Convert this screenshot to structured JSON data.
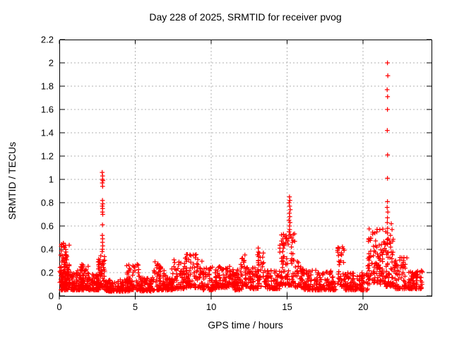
{
  "window": {
    "background": "#ffffff"
  },
  "chart_data": {
    "type": "scatter",
    "title": "Day 228 of 2025, SRMTID for receiver pvog",
    "xlabel": "GPS time / hours",
    "ylabel": "SRMTID / TECUs",
    "series_name": "SRMTID",
    "xlim": [
      0,
      24.5
    ],
    "ylim": [
      0,
      2.2
    ],
    "xticks": [
      0,
      5,
      10,
      15,
      20
    ],
    "yticks": [
      0,
      0.2,
      0.4,
      0.6,
      0.8,
      1,
      1.2,
      1.4,
      1.6,
      1.8,
      2,
      2.2
    ],
    "grid": true,
    "legend": "none",
    "marker_glyph": "+",
    "marker_color": "#ff0000",
    "grid_color": "#b0b0b0",
    "axis_color": "#000000",
    "outlier_points": [
      [
        2.82,
        1.06
      ],
      [
        2.85,
        1.03
      ],
      [
        2.84,
        1.0
      ],
      [
        2.87,
        0.99
      ],
      [
        2.83,
        0.97
      ],
      [
        2.85,
        0.94
      ],
      [
        2.84,
        0.82
      ],
      [
        2.86,
        0.79
      ],
      [
        2.83,
        0.77
      ],
      [
        2.85,
        0.75
      ],
      [
        2.84,
        0.72
      ],
      [
        2.86,
        0.7
      ],
      [
        2.84,
        0.61
      ],
      [
        2.83,
        0.52
      ],
      [
        2.85,
        0.49
      ],
      [
        2.84,
        0.46
      ],
      [
        2.86,
        0.43
      ],
      [
        2.84,
        0.4
      ],
      [
        2.82,
        0.38
      ],
      [
        15.15,
        0.85
      ],
      [
        15.18,
        0.82
      ],
      [
        15.13,
        0.8
      ],
      [
        15.16,
        0.77
      ],
      [
        15.2,
        0.74
      ],
      [
        15.14,
        0.71
      ],
      [
        15.17,
        0.68
      ],
      [
        15.12,
        0.65
      ],
      [
        15.19,
        0.63
      ],
      [
        15.15,
        0.6
      ],
      [
        15.16,
        0.57
      ],
      [
        15.13,
        0.55
      ],
      [
        14.75,
        0.53
      ],
      [
        14.72,
        0.49
      ],
      [
        14.78,
        0.45
      ],
      [
        14.74,
        0.41
      ],
      [
        14.7,
        0.38
      ],
      [
        15.3,
        0.5
      ],
      [
        15.33,
        0.46
      ],
      [
        15.28,
        0.42
      ],
      [
        21.6,
        2.0
      ],
      [
        21.62,
        1.89
      ],
      [
        21.58,
        1.77
      ],
      [
        21.61,
        1.71
      ],
      [
        21.6,
        1.6
      ],
      [
        21.59,
        1.42
      ],
      [
        21.61,
        1.21
      ],
      [
        21.6,
        1.01
      ],
      [
        21.6,
        0.81
      ],
      [
        21.58,
        0.76
      ],
      [
        21.62,
        0.72
      ],
      [
        21.6,
        0.67
      ],
      [
        21.59,
        0.63
      ],
      [
        21.61,
        0.58
      ],
      [
        21.6,
        0.54
      ],
      [
        21.63,
        0.49
      ],
      [
        21.57,
        0.45
      ],
      [
        21.85,
        0.62
      ],
      [
        21.9,
        0.57
      ],
      [
        21.8,
        0.52
      ],
      [
        21.95,
        0.47
      ]
    ],
    "band_segments": [
      [
        0.02,
        0.35,
        0.08,
        0.46,
        45,
        1.5
      ],
      [
        0.3,
        0.65,
        0.1,
        0.45,
        40,
        1.6
      ],
      [
        0.1,
        1.0,
        0.05,
        0.25,
        80,
        2.0
      ],
      [
        0.8,
        1.6,
        0.05,
        0.22,
        80,
        2.0
      ],
      [
        1.4,
        1.9,
        0.06,
        0.28,
        50,
        1.8
      ],
      [
        1.9,
        2.6,
        0.05,
        0.2,
        70,
        2.0
      ],
      [
        2.55,
        3.0,
        0.07,
        0.36,
        60,
        1.6
      ],
      [
        3.0,
        4.7,
        0.04,
        0.14,
        140,
        2.0
      ],
      [
        4.4,
        5.3,
        0.05,
        0.28,
        65,
        2.0
      ],
      [
        5.3,
        6.2,
        0.04,
        0.16,
        80,
        2.0
      ],
      [
        6.2,
        6.9,
        0.05,
        0.3,
        60,
        1.9
      ],
      [
        6.9,
        7.5,
        0.05,
        0.18,
        55,
        2.0
      ],
      [
        7.4,
        8.2,
        0.06,
        0.31,
        65,
        1.9
      ],
      [
        8.2,
        9.4,
        0.07,
        0.36,
        100,
        1.9
      ],
      [
        9.4,
        10.3,
        0.05,
        0.25,
        70,
        2.0
      ],
      [
        10.3,
        11.4,
        0.07,
        0.26,
        85,
        2.0
      ],
      [
        11.4,
        12.0,
        0.05,
        0.24,
        60,
        2.0
      ],
      [
        11.9,
        12.5,
        0.08,
        0.43,
        40,
        1.6
      ],
      [
        12.5,
        13.1,
        0.06,
        0.26,
        50,
        2.0
      ],
      [
        13.0,
        13.5,
        0.08,
        0.46,
        35,
        1.6
      ],
      [
        13.5,
        14.5,
        0.06,
        0.22,
        75,
        2.0
      ],
      [
        14.5,
        15.5,
        0.09,
        0.55,
        90,
        1.5
      ],
      [
        15.5,
        16.1,
        0.07,
        0.3,
        45,
        1.9
      ],
      [
        16.1,
        18.2,
        0.05,
        0.22,
        150,
        2.1
      ],
      [
        18.3,
        18.8,
        0.08,
        0.43,
        40,
        1.6
      ],
      [
        18.8,
        20.3,
        0.05,
        0.2,
        110,
        2.1
      ],
      [
        20.3,
        21.5,
        0.1,
        0.58,
        115,
        1.4
      ],
      [
        21.5,
        22.1,
        0.08,
        0.5,
        60,
        1.6
      ],
      [
        22.1,
        22.9,
        0.06,
        0.33,
        60,
        1.9
      ],
      [
        22.9,
        23.9,
        0.06,
        0.22,
        80,
        2.0
      ]
    ],
    "prng_seed": 228
  }
}
